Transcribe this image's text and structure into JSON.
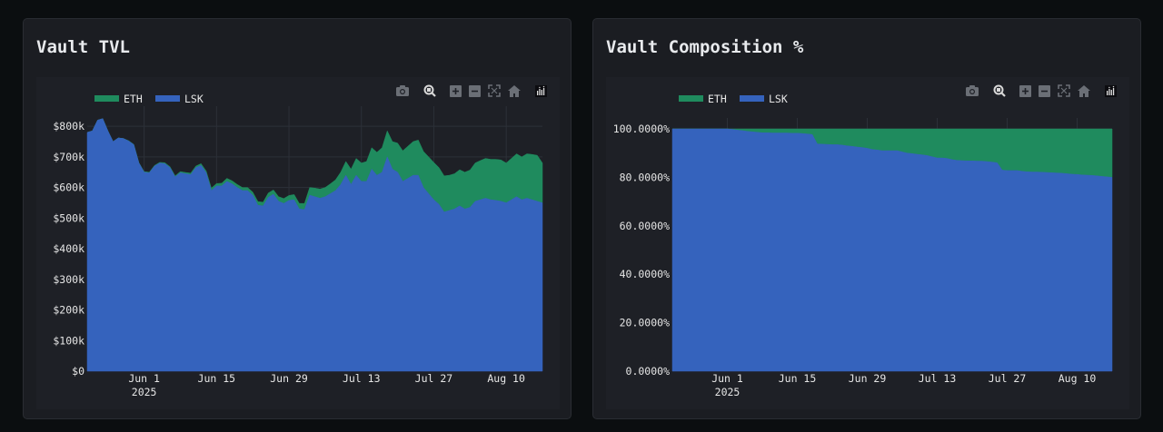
{
  "panels": [
    {
      "title": "Vault TVL",
      "legend": [
        {
          "name": "ETH",
          "color": "#1f8b5e"
        },
        {
          "name": "LSK",
          "color": "#3563bd"
        }
      ]
    },
    {
      "title": "Vault Composition %",
      "legend": [
        {
          "name": "ETH",
          "color": "#1f8b5e"
        },
        {
          "name": "LSK",
          "color": "#3563bd"
        }
      ]
    }
  ],
  "toolbar": {
    "icons": [
      "camera-icon",
      "zoom-icon",
      "zoom-in-icon",
      "zoom-out-icon",
      "autoscale-icon",
      "home-icon",
      "logo-icon"
    ]
  },
  "chart_data": [
    {
      "type": "area",
      "stacked": true,
      "title": "Vault TVL",
      "x_start": "2025-05-21",
      "x": [
        "2025-05-21",
        "2025-05-22",
        "2025-05-23",
        "2025-05-24",
        "2025-05-25",
        "2025-05-26",
        "2025-05-27",
        "2025-05-28",
        "2025-05-29",
        "2025-05-30",
        "2025-05-31",
        "2025-06-01",
        "2025-06-02",
        "2025-06-03",
        "2025-06-04",
        "2025-06-05",
        "2025-06-06",
        "2025-06-07",
        "2025-06-08",
        "2025-06-09",
        "2025-06-10",
        "2025-06-11",
        "2025-06-12",
        "2025-06-13",
        "2025-06-14",
        "2025-06-15",
        "2025-06-16",
        "2025-06-17",
        "2025-06-18",
        "2025-06-19",
        "2025-06-20",
        "2025-06-21",
        "2025-06-22",
        "2025-06-23",
        "2025-06-24",
        "2025-06-25",
        "2025-06-26",
        "2025-06-27",
        "2025-06-28",
        "2025-06-29",
        "2025-06-30",
        "2025-07-01",
        "2025-07-02",
        "2025-07-03",
        "2025-07-04",
        "2025-07-05",
        "2025-07-06",
        "2025-07-07",
        "2025-07-08",
        "2025-07-09",
        "2025-07-10",
        "2025-07-11",
        "2025-07-12",
        "2025-07-13",
        "2025-07-14",
        "2025-07-15",
        "2025-07-16",
        "2025-07-17",
        "2025-07-18",
        "2025-07-19",
        "2025-07-20",
        "2025-07-21",
        "2025-07-22",
        "2025-07-23",
        "2025-07-24",
        "2025-07-25",
        "2025-07-26",
        "2025-07-27",
        "2025-07-28",
        "2025-07-29",
        "2025-07-30",
        "2025-07-31",
        "2025-08-01",
        "2025-08-02",
        "2025-08-03",
        "2025-08-04",
        "2025-08-05",
        "2025-08-06",
        "2025-08-07",
        "2025-08-08",
        "2025-08-09",
        "2025-08-10",
        "2025-08-11",
        "2025-08-12",
        "2025-08-13",
        "2025-08-14",
        "2025-08-15",
        "2025-08-16",
        "2025-08-17"
      ],
      "series": [
        {
          "name": "LSK",
          "color": "#3563bd",
          "values": [
            780,
            785,
            820,
            825,
            785,
            750,
            762,
            760,
            752,
            740,
            680,
            650,
            648,
            670,
            680,
            678,
            665,
            635,
            648,
            645,
            642,
            665,
            672,
            648,
            590,
            605,
            605,
            620,
            612,
            600,
            590,
            590,
            575,
            542,
            540,
            568,
            578,
            555,
            548,
            558,
            560,
            530,
            528,
            575,
            570,
            565,
            570,
            580,
            590,
            610,
            640,
            610,
            640,
            620,
            620,
            660,
            640,
            650,
            700,
            660,
            650,
            620,
            630,
            640,
            640,
            600,
            580,
            560,
            545,
            520,
            525,
            530,
            540,
            530,
            535,
            555,
            560,
            565,
            560,
            558,
            555,
            550,
            560,
            570,
            560,
            565,
            560,
            555,
            550
          ]
        },
        {
          "name": "ETH",
          "color": "#1f8b5e",
          "values": [
            0,
            0,
            0,
            0,
            0,
            0,
            0,
            0,
            1,
            1,
            1,
            2,
            2,
            2,
            2,
            3,
            3,
            3,
            4,
            4,
            5,
            5,
            6,
            6,
            8,
            8,
            9,
            10,
            10,
            10,
            10,
            10,
            10,
            12,
            12,
            14,
            14,
            15,
            16,
            16,
            17,
            18,
            20,
            25,
            28,
            30,
            30,
            32,
            35,
            40,
            45,
            50,
            55,
            60,
            65,
            70,
            75,
            80,
            85,
            90,
            95,
            100,
            105,
            110,
            115,
            118,
            120,
            122,
            120,
            118,
            115,
            115,
            118,
            120,
            122,
            125,
            128,
            130,
            132,
            134,
            135,
            130,
            135,
            140,
            140,
            145,
            148,
            150,
            130
          ]
        }
      ],
      "xtick_labels": [
        "Jun 1\n2025",
        "Jun 15",
        "Jun 29",
        "Jul 13",
        "Jul 27",
        "Aug 10"
      ],
      "xticks": [
        "2025-06-01",
        "2025-06-15",
        "2025-06-29",
        "2025-07-13",
        "2025-07-27",
        "2025-08-10"
      ],
      "ytick_labels": [
        "$0",
        "$100k",
        "$200k",
        "$300k",
        "$400k",
        "$500k",
        "$600k",
        "$700k",
        "$800k"
      ],
      "yticks": [
        0,
        100,
        200,
        300,
        400,
        500,
        600,
        700,
        800
      ],
      "ylim": [
        0,
        830
      ],
      "grid": true,
      "legend_position": "top-left"
    },
    {
      "type": "area",
      "stacked": true,
      "title": "Vault Composition %",
      "x_start": "2025-05-21",
      "x": [
        "2025-05-21",
        "2025-05-22",
        "2025-05-23",
        "2025-05-24",
        "2025-05-25",
        "2025-05-26",
        "2025-05-27",
        "2025-05-28",
        "2025-05-29",
        "2025-05-30",
        "2025-05-31",
        "2025-06-01",
        "2025-06-02",
        "2025-06-03",
        "2025-06-04",
        "2025-06-05",
        "2025-06-06",
        "2025-06-07",
        "2025-06-08",
        "2025-06-09",
        "2025-06-10",
        "2025-06-11",
        "2025-06-12",
        "2025-06-13",
        "2025-06-14",
        "2025-06-15",
        "2025-06-16",
        "2025-06-17",
        "2025-06-18",
        "2025-06-19",
        "2025-06-20",
        "2025-06-21",
        "2025-06-22",
        "2025-06-23",
        "2025-06-24",
        "2025-06-25",
        "2025-06-26",
        "2025-06-27",
        "2025-06-28",
        "2025-06-29",
        "2025-06-30",
        "2025-07-01",
        "2025-07-02",
        "2025-07-03",
        "2025-07-04",
        "2025-07-05",
        "2025-07-06",
        "2025-07-07",
        "2025-07-08",
        "2025-07-09",
        "2025-07-10",
        "2025-07-11",
        "2025-07-12",
        "2025-07-13",
        "2025-07-14",
        "2025-07-15",
        "2025-07-16",
        "2025-07-17",
        "2025-07-18",
        "2025-07-19",
        "2025-07-20",
        "2025-07-21",
        "2025-07-22",
        "2025-07-23",
        "2025-07-24",
        "2025-07-25",
        "2025-07-26",
        "2025-07-27",
        "2025-07-28",
        "2025-07-29",
        "2025-07-30",
        "2025-07-31",
        "2025-08-01",
        "2025-08-02",
        "2025-08-03",
        "2025-08-04",
        "2025-08-05",
        "2025-08-06",
        "2025-08-07",
        "2025-08-08",
        "2025-08-09",
        "2025-08-10",
        "2025-08-11",
        "2025-08-12",
        "2025-08-13",
        "2025-08-14",
        "2025-08-15",
        "2025-08-16",
        "2025-08-17"
      ],
      "series": [
        {
          "name": "LSK",
          "color": "#3563bd",
          "values": [
            100,
            100,
            100,
            100,
            100,
            100,
            100,
            100,
            100,
            100,
            100,
            100,
            99.8,
            99.5,
            99.3,
            99.0,
            98.8,
            98.6,
            98.4,
            98.4,
            98.3,
            98.3,
            98.3,
            98.3,
            98.2,
            98.2,
            98.1,
            97.9,
            97.7,
            93.8,
            93.7,
            93.6,
            93.5,
            93.5,
            93.3,
            93.0,
            92.8,
            92.5,
            92.3,
            92.0,
            91.5,
            91.3,
            91.0,
            91.0,
            91.0,
            91.0,
            90.5,
            90.0,
            89.8,
            89.5,
            89.3,
            89.0,
            88.5,
            88.0,
            88.0,
            87.8,
            87.3,
            87.0,
            86.9,
            86.8,
            86.8,
            86.7,
            86.7,
            86.5,
            86.3,
            86.0,
            83.0,
            82.8,
            82.8,
            82.8,
            82.5,
            82.3,
            82.2,
            82.2,
            82.1,
            82.0,
            81.9,
            81.8,
            81.7,
            81.5,
            81.3,
            81.2,
            81.0,
            80.9,
            80.8,
            80.6,
            80.4,
            80.2,
            80.0
          ]
        },
        {
          "name": "ETH",
          "color": "#1f8b5e",
          "values": [
            0,
            0,
            0,
            0,
            0,
            0,
            0,
            0,
            0,
            0,
            0,
            0,
            0.2,
            0.5,
            0.7,
            1.0,
            1.2,
            1.4,
            1.6,
            1.6,
            1.7,
            1.7,
            1.7,
            1.7,
            1.8,
            1.8,
            1.9,
            2.1,
            2.3,
            6.2,
            6.3,
            6.4,
            6.5,
            6.5,
            6.7,
            7.0,
            7.2,
            7.5,
            7.7,
            8.0,
            8.5,
            8.7,
            9.0,
            9.0,
            9.0,
            9.0,
            9.5,
            10.0,
            10.2,
            10.5,
            10.7,
            11.0,
            11.5,
            12.0,
            12.0,
            12.2,
            12.7,
            13.0,
            13.1,
            13.2,
            13.2,
            13.3,
            13.3,
            13.5,
            13.7,
            14.0,
            17.0,
            17.2,
            17.2,
            17.2,
            17.5,
            17.7,
            17.8,
            17.8,
            17.9,
            18.0,
            18.1,
            18.2,
            18.3,
            18.5,
            18.7,
            18.8,
            19.0,
            19.1,
            19.2,
            19.4,
            19.6,
            19.8,
            20.0
          ]
        }
      ],
      "xtick_labels": [
        "Jun 1\n2025",
        "Jun 15",
        "Jun 29",
        "Jul 13",
        "Jul 27",
        "Aug 10"
      ],
      "xticks": [
        "2025-06-01",
        "2025-06-15",
        "2025-06-29",
        "2025-07-13",
        "2025-07-27",
        "2025-08-10"
      ],
      "ytick_labels": [
        "0.0000%",
        "20.0000%",
        "40.0000%",
        "60.0000%",
        "80.0000%",
        "100.0000%"
      ],
      "yticks": [
        0,
        20,
        40,
        60,
        80,
        100
      ],
      "ylim": [
        0,
        100
      ],
      "grid": true,
      "legend_position": "top-left"
    }
  ]
}
